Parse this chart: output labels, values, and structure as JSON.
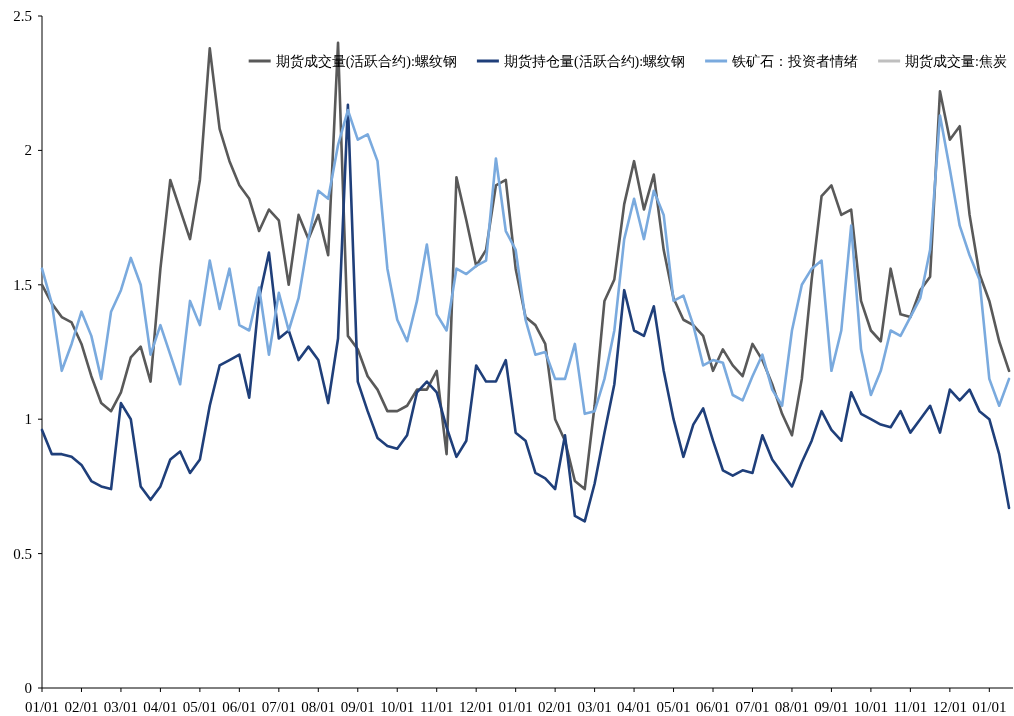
{
  "chart_data": {
    "type": "line",
    "categories": [
      "01/01",
      null,
      null,
      null,
      "02/01",
      null,
      null,
      null,
      "03/01",
      null,
      null,
      null,
      "04/01",
      null,
      null,
      null,
      "05/01",
      null,
      null,
      null,
      "06/01",
      null,
      null,
      null,
      "07/01",
      null,
      null,
      null,
      "08/01",
      null,
      null,
      null,
      "09/01",
      null,
      null,
      null,
      "10/01",
      null,
      null,
      null,
      "11/01",
      null,
      null,
      null,
      "12/01",
      null,
      null,
      null,
      "01/01",
      null,
      null,
      null,
      "02/01",
      null,
      null,
      null,
      "03/01",
      null,
      null,
      null,
      "04/01",
      null,
      null,
      null,
      "05/01",
      null,
      null,
      null,
      "06/01",
      null,
      null,
      null,
      "07/01",
      null,
      null,
      null,
      "08/01",
      null,
      null,
      null,
      "09/01",
      null,
      null,
      null,
      "10/01",
      null,
      null,
      null,
      "11/01",
      null,
      null,
      null,
      "12/01",
      null,
      null,
      null,
      "01/01",
      null,
      null
    ],
    "series": [
      {
        "name": "期货成交量(活跃合约):螺纹钢",
        "color": "#595959",
        "values": [
          1.5,
          1.43,
          1.38,
          1.36,
          1.28,
          1.16,
          1.06,
          1.03,
          1.1,
          1.23,
          1.27,
          1.14,
          1.56,
          1.89,
          1.78,
          1.67,
          1.89,
          2.38,
          2.08,
          1.96,
          1.87,
          1.82,
          1.7,
          1.78,
          1.74,
          1.5,
          1.76,
          1.67,
          1.76,
          1.61,
          2.4,
          1.31,
          1.26,
          1.16,
          1.11,
          1.03,
          1.03,
          1.05,
          1.11,
          1.11,
          1.18,
          0.87,
          1.9,
          1.74,
          1.57,
          1.63,
          1.87,
          1.89,
          1.56,
          1.38,
          1.35,
          1.28,
          1.0,
          0.92,
          0.77,
          0.74,
          1.05,
          1.44,
          1.52,
          1.8,
          1.96,
          1.78,
          1.91,
          1.63,
          1.45,
          1.37,
          1.35,
          1.31,
          1.18,
          1.26,
          1.2,
          1.16,
          1.28,
          1.22,
          1.13,
          1.02,
          0.94,
          1.15,
          1.52,
          1.83,
          1.87,
          1.76,
          1.78,
          1.44,
          1.33,
          1.29,
          1.56,
          1.39,
          1.38,
          1.48,
          1.53,
          2.22,
          2.04,
          2.09,
          1.76,
          1.54,
          1.44,
          1.29,
          1.18
        ]
      },
      {
        "name": "期货持仓量(活跃合约):螺纹钢",
        "color": "#1f3f7a",
        "values": [
          0.96,
          0.87,
          0.87,
          0.86,
          0.83,
          0.77,
          0.75,
          0.74,
          1.06,
          1.0,
          0.75,
          0.7,
          0.75,
          0.85,
          0.88,
          0.8,
          0.85,
          1.05,
          1.2,
          1.22,
          1.24,
          1.08,
          1.45,
          1.62,
          1.3,
          1.33,
          1.22,
          1.27,
          1.22,
          1.06,
          1.3,
          2.17,
          1.14,
          1.03,
          0.93,
          0.9,
          0.89,
          0.94,
          1.1,
          1.14,
          1.1,
          0.97,
          0.86,
          0.92,
          1.2,
          1.14,
          1.14,
          1.22,
          0.95,
          0.92,
          0.8,
          0.78,
          0.74,
          0.94,
          0.64,
          0.62,
          0.76,
          0.95,
          1.13,
          1.48,
          1.33,
          1.31,
          1.42,
          1.18,
          1.0,
          0.86,
          0.98,
          1.04,
          0.92,
          0.81,
          0.79,
          0.81,
          0.8,
          0.94,
          0.85,
          0.8,
          0.75,
          0.84,
          0.92,
          1.03,
          0.96,
          0.92,
          1.1,
          1.02,
          1.0,
          0.98,
          0.97,
          1.03,
          0.95,
          1.0,
          1.05,
          0.95,
          1.11,
          1.07,
          1.11,
          1.03,
          1.0,
          0.87,
          0.67
        ]
      },
      {
        "name": "铁矿石：投资者情绪",
        "color": "#7aaade",
        "values": [
          1.56,
          1.43,
          1.18,
          1.28,
          1.4,
          1.31,
          1.15,
          1.4,
          1.48,
          1.6,
          1.5,
          1.24,
          1.35,
          1.24,
          1.13,
          1.44,
          1.35,
          1.59,
          1.41,
          1.56,
          1.35,
          1.33,
          1.49,
          1.24,
          1.47,
          1.33,
          1.45,
          1.67,
          1.85,
          1.82,
          2.02,
          2.15,
          2.04,
          2.06,
          1.96,
          1.56,
          1.37,
          1.29,
          1.44,
          1.65,
          1.39,
          1.33,
          1.56,
          1.54,
          1.57,
          1.59,
          1.97,
          1.7,
          1.63,
          1.37,
          1.24,
          1.25,
          1.15,
          1.15,
          1.28,
          1.02,
          1.03,
          1.15,
          1.33,
          1.67,
          1.82,
          1.67,
          1.85,
          1.76,
          1.44,
          1.46,
          1.35,
          1.2,
          1.22,
          1.21,
          1.09,
          1.07,
          1.16,
          1.24,
          1.11,
          1.05,
          1.33,
          1.5,
          1.56,
          1.59,
          1.18,
          1.33,
          1.72,
          1.26,
          1.09,
          1.18,
          1.33,
          1.31,
          1.38,
          1.45,
          1.63,
          2.13,
          1.93,
          1.72,
          1.61,
          1.52,
          1.15,
          1.05,
          1.15
        ]
      },
      {
        "name": "期货成交量:焦炭",
        "color": "#bfbfbf",
        "values": [
          null,
          null,
          null,
          null,
          null,
          null,
          null,
          null,
          null,
          null,
          null,
          null,
          null,
          null,
          null,
          null,
          null,
          null,
          null,
          null,
          null,
          null,
          null,
          null,
          null,
          null,
          null,
          null,
          null,
          null,
          null,
          null,
          null,
          null,
          null,
          null,
          null,
          null,
          null,
          null,
          null,
          null,
          null,
          null,
          null,
          null,
          null,
          null,
          null,
          null,
          null,
          null,
          null,
          null,
          null,
          null,
          null,
          null,
          null,
          null,
          null,
          null,
          null,
          null,
          null,
          null,
          null,
          null,
          null,
          null,
          null,
          null,
          null,
          null,
          null,
          null,
          null,
          null,
          null,
          null,
          null,
          null,
          null,
          null,
          null,
          null,
          null,
          null,
          null,
          null,
          null,
          null,
          null,
          null,
          null,
          null,
          null,
          null,
          null
        ]
      }
    ],
    "ylim": [
      0,
      2.5
    ],
    "yticks": [
      0,
      0.5,
      1,
      1.5,
      2,
      2.5
    ],
    "legend": "top right",
    "grid": false
  }
}
